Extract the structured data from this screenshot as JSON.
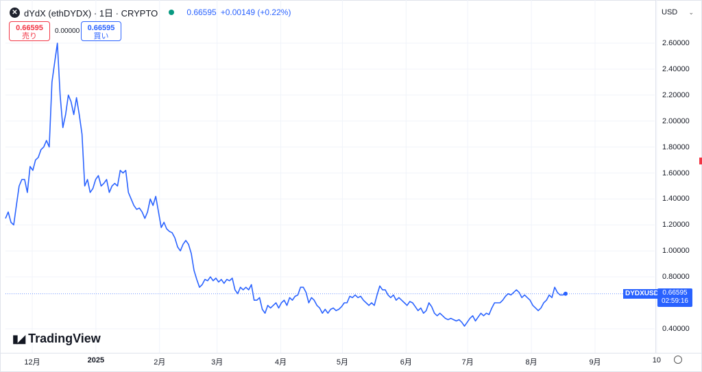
{
  "header": {
    "symbol": "dYdX (ethDYDX) · 1日 · CRYPTO",
    "last_price": "0.66595",
    "change": "+0.00149 (+0.22%)"
  },
  "trade": {
    "sell_price": "0.66595",
    "sell_label": "売り",
    "spread": "0.00000",
    "buy_price": "0.66595",
    "buy_label": "買い"
  },
  "currency": "USD",
  "price_tag": {
    "symbol": "DYDXUSD",
    "price": "0.66595",
    "countdown": "02:59:16"
  },
  "watermark": "TradingView",
  "chart_data": {
    "type": "line",
    "ylim": [
      0.3,
      2.8
    ],
    "y_ticks": [
      "2.60000",
      "2.40000",
      "2.20000",
      "2.00000",
      "1.80000",
      "1.60000",
      "1.40000",
      "1.20000",
      "1.00000",
      "0.80000",
      "0.40000"
    ],
    "y_tick_values": [
      2.6,
      2.4,
      2.2,
      2.0,
      1.8,
      1.6,
      1.4,
      1.2,
      1.0,
      0.8,
      0.4
    ],
    "x_ticks": [
      {
        "label": "12月",
        "bold": false
      },
      {
        "label": "2025",
        "bold": true
      },
      {
        "label": "2月",
        "bold": false
      },
      {
        "label": "3月",
        "bold": false
      },
      {
        "label": "4月",
        "bold": false
      },
      {
        "label": "5月",
        "bold": false
      },
      {
        "label": "6月",
        "bold": false
      },
      {
        "label": "7月",
        "bold": false
      },
      {
        "label": "8月",
        "bold": false
      },
      {
        "label": "9月",
        "bold": false
      },
      {
        "label": "10",
        "bold": false
      }
    ],
    "x_tick_days": [
      26,
      57,
      88,
      116,
      147,
      177,
      208,
      238,
      269,
      300,
      330
    ],
    "series": [
      {
        "color": "#2962ff",
        "values": [
          1.25,
          1.3,
          1.22,
          1.2,
          1.35,
          1.5,
          1.55,
          1.55,
          1.45,
          1.65,
          1.62,
          1.7,
          1.72,
          1.78,
          1.8,
          1.85,
          1.8,
          2.3,
          2.45,
          2.6,
          2.2,
          1.95,
          2.05,
          2.2,
          2.15,
          2.05,
          2.18,
          2.05,
          1.9,
          1.5,
          1.55,
          1.45,
          1.48,
          1.55,
          1.58,
          1.5,
          1.52,
          1.55,
          1.45,
          1.5,
          1.52,
          1.5,
          1.62,
          1.6,
          1.62,
          1.45,
          1.4,
          1.35,
          1.32,
          1.33,
          1.3,
          1.25,
          1.3,
          1.4,
          1.35,
          1.42,
          1.3,
          1.18,
          1.22,
          1.17,
          1.15,
          1.14,
          1.1,
          1.03,
          1.0,
          1.05,
          1.08,
          1.05,
          0.98,
          0.85,
          0.78,
          0.72,
          0.74,
          0.78,
          0.77,
          0.8,
          0.77,
          0.79,
          0.76,
          0.78,
          0.75,
          0.78,
          0.77,
          0.79,
          0.7,
          0.67,
          0.72,
          0.7,
          0.72,
          0.7,
          0.74,
          0.62,
          0.62,
          0.64,
          0.55,
          0.52,
          0.58,
          0.56,
          0.58,
          0.6,
          0.56,
          0.6,
          0.62,
          0.58,
          0.64,
          0.62,
          0.65,
          0.66,
          0.72,
          0.72,
          0.68,
          0.6,
          0.64,
          0.62,
          0.58,
          0.56,
          0.52,
          0.55,
          0.52,
          0.55,
          0.56,
          0.54,
          0.55,
          0.57,
          0.6,
          0.6,
          0.65,
          0.64,
          0.66,
          0.64,
          0.65,
          0.62,
          0.6,
          0.58,
          0.6,
          0.58,
          0.66,
          0.73,
          0.7,
          0.7,
          0.66,
          0.64,
          0.66,
          0.62,
          0.64,
          0.62,
          0.6,
          0.58,
          0.61,
          0.6,
          0.57,
          0.54,
          0.56,
          0.52,
          0.54,
          0.6,
          0.57,
          0.52,
          0.5,
          0.52,
          0.5,
          0.48,
          0.47,
          0.48,
          0.47,
          0.46,
          0.47,
          0.45,
          0.42,
          0.45,
          0.48,
          0.5,
          0.46,
          0.49,
          0.52,
          0.5,
          0.52,
          0.51,
          0.56,
          0.6,
          0.6,
          0.6,
          0.62,
          0.65,
          0.67,
          0.66,
          0.68,
          0.7,
          0.68,
          0.64,
          0.66,
          0.64,
          0.62,
          0.58,
          0.56,
          0.54,
          0.56,
          0.6,
          0.62,
          0.66,
          0.64,
          0.72,
          0.68,
          0.66,
          0.66,
          0.67
        ]
      }
    ]
  }
}
